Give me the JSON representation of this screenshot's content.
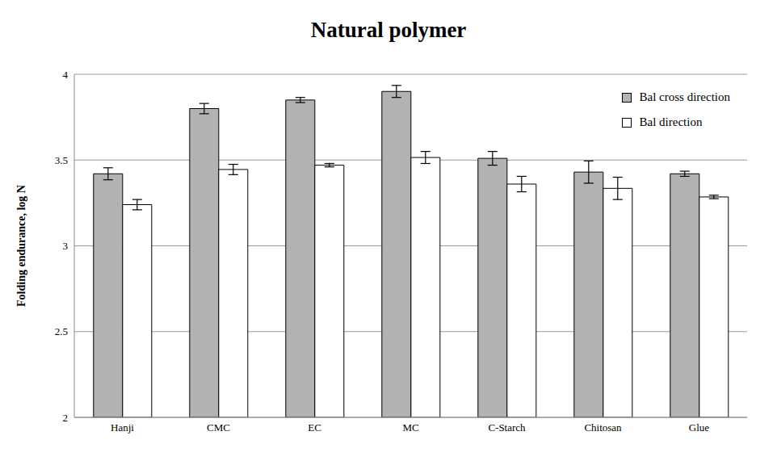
{
  "chart_data": {
    "type": "bar",
    "title": "Natural polymer",
    "y_label": "Folding endurance, log N",
    "categories": [
      "Hanji",
      "CMC",
      "EC",
      "MC",
      "C-Starch",
      "Chitosan",
      "Glue"
    ],
    "series": [
      {
        "name": "Bal cross direction",
        "color": "#b2b2b2",
        "values": [
          3.42,
          3.8,
          3.85,
          3.9,
          3.51,
          3.43,
          3.42
        ],
        "errors": [
          0.035,
          0.03,
          0.015,
          0.035,
          0.04,
          0.065,
          0.015
        ]
      },
      {
        "name": "Bal direction",
        "color": "#ffffff",
        "values": [
          3.24,
          3.445,
          3.47,
          3.515,
          3.36,
          3.335,
          3.285
        ],
        "errors": [
          0.03,
          0.03,
          0.01,
          0.035,
          0.045,
          0.065,
          0.01
        ]
      }
    ],
    "ylim": [
      2,
      4
    ],
    "yticks": [
      2,
      2.5,
      3,
      3.5,
      4
    ],
    "grid": true,
    "legend": "upper right"
  }
}
